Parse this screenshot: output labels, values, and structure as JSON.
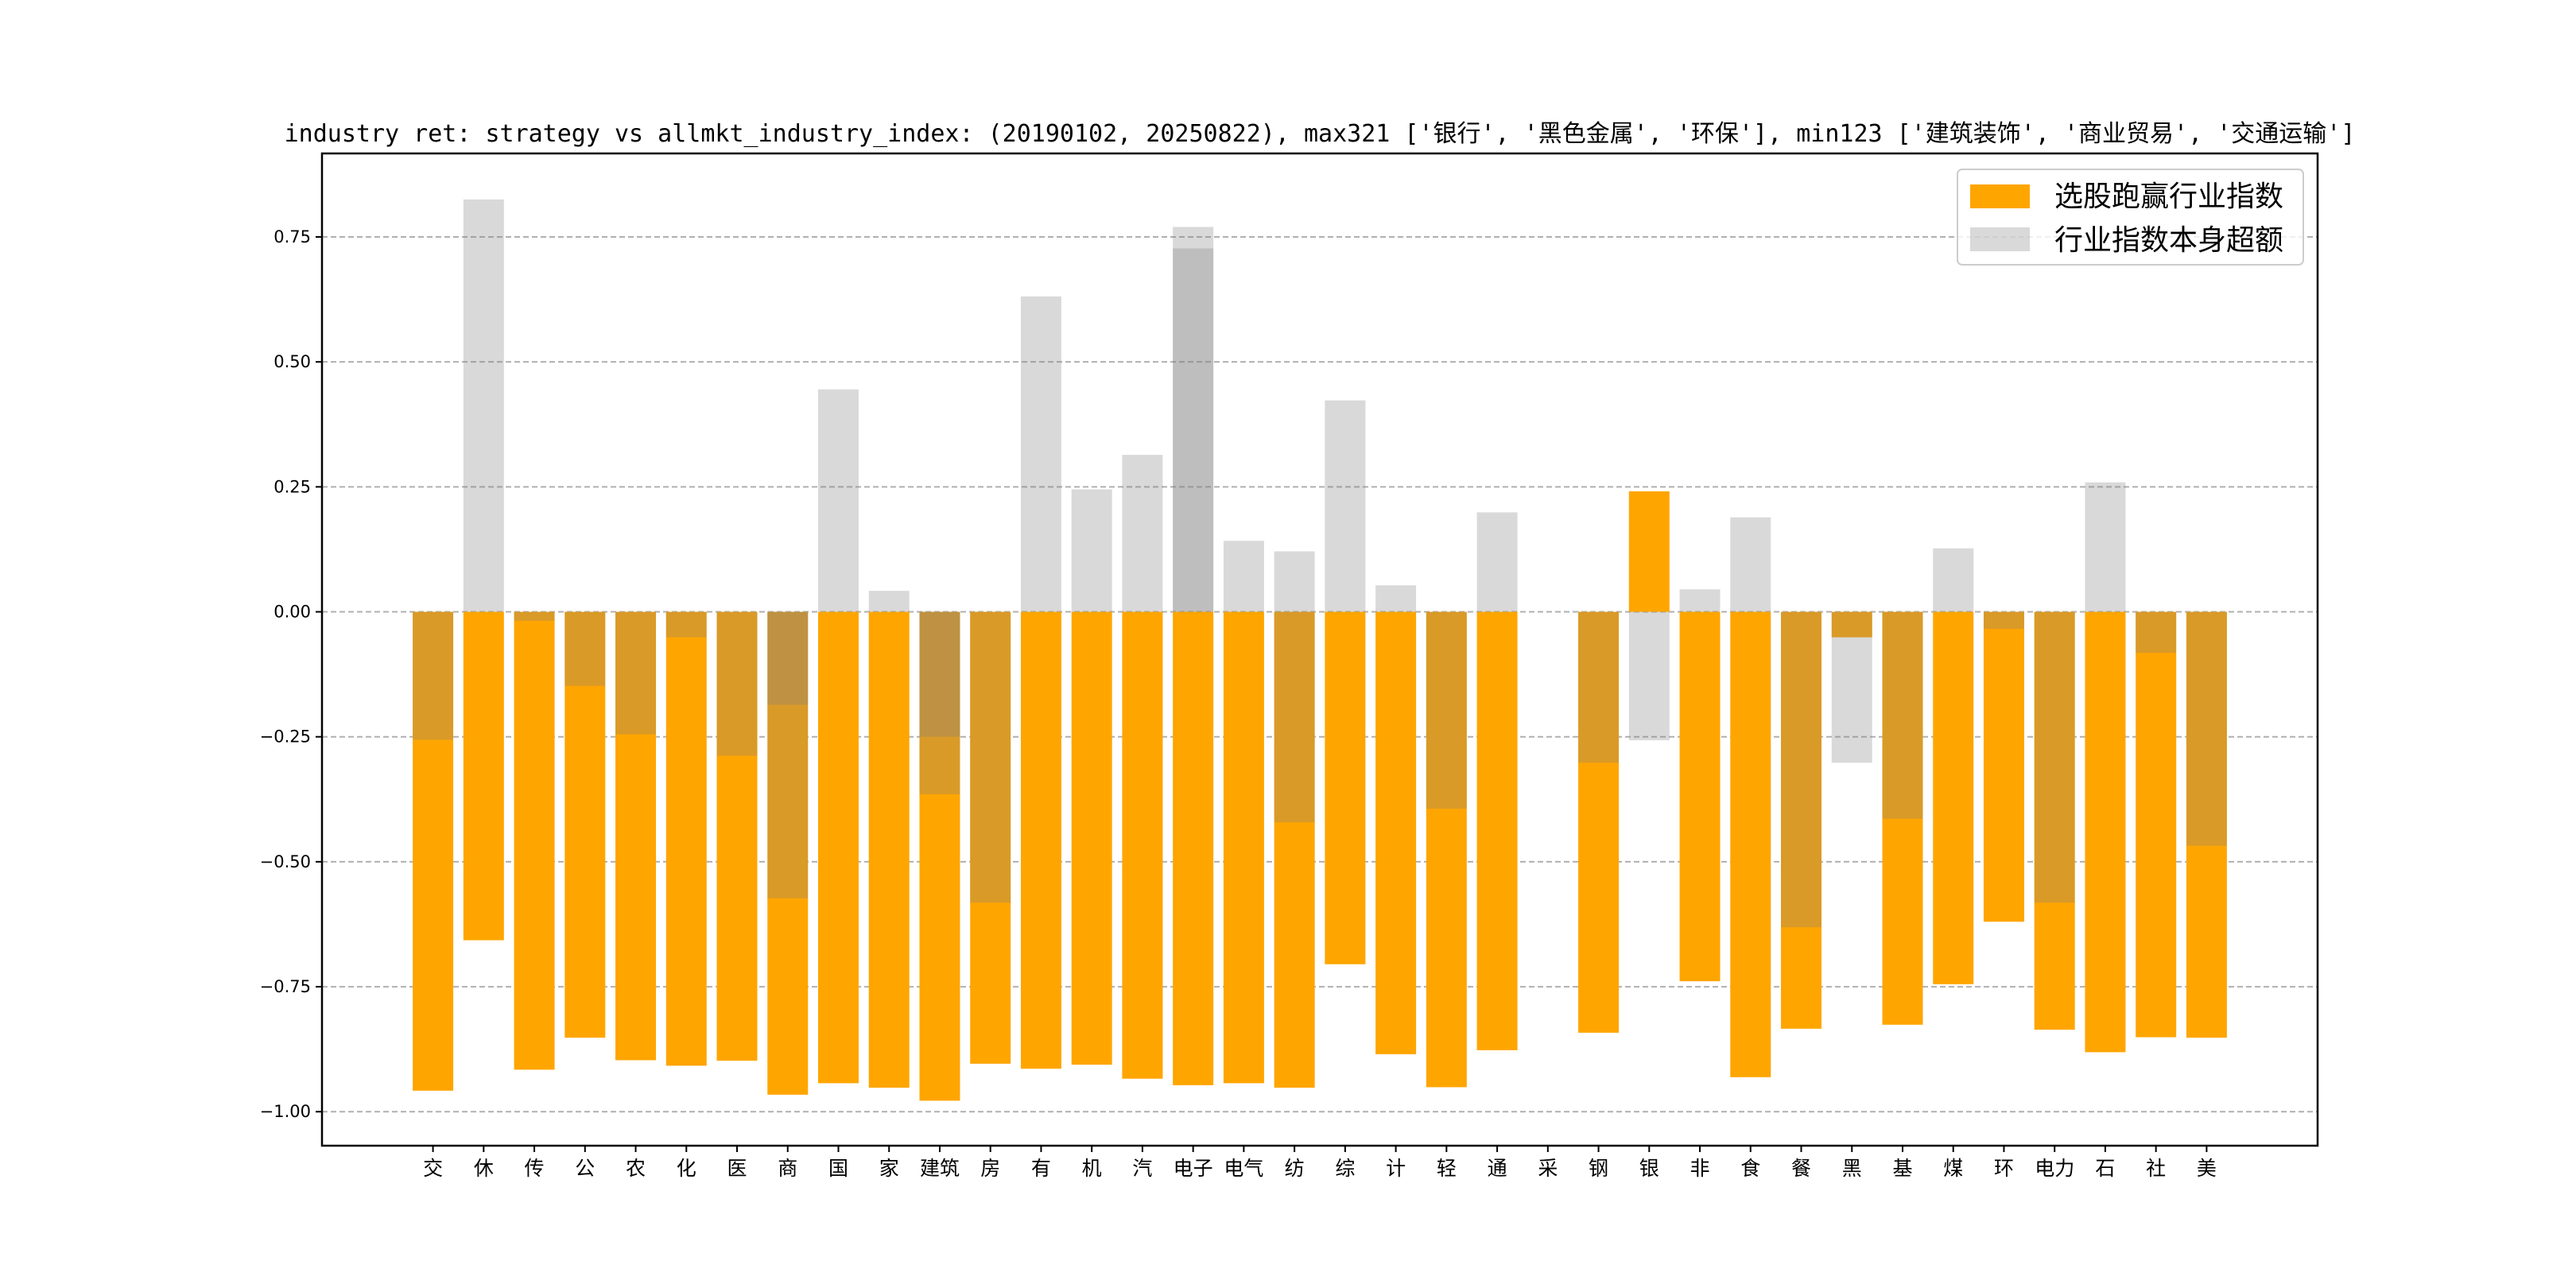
{
  "chart_data": {
    "type": "bar",
    "title": "industry ret: strategy vs allmkt_industry_index: (20190102, 20250822), max321 ['银行', '黑色金属', '环保'], min123 ['建筑装饰', '商业贸易', '交通运输']",
    "xlabel": "",
    "ylabel": "",
    "ylim": [
      -1.068,
      0.917
    ],
    "yticks": [
      -1.0,
      -0.75,
      -0.5,
      -0.25,
      0.0,
      0.25,
      0.5,
      0.75
    ],
    "ytick_labels": [
      "−1.00",
      "−0.75",
      "−0.50",
      "−0.25",
      "0.00",
      "0.25",
      "0.50",
      "0.75"
    ],
    "grid": "y dashed",
    "legend_position": "top-right",
    "colors": {
      "strategy": "#FFA500",
      "industry": "#808080",
      "industry_alpha": 0.3,
      "grid": "#b0b0b0"
    },
    "series_names": [
      "选股跑赢行业指数",
      "行业指数本身超额"
    ],
    "categories": [
      "交",
      "休",
      "传",
      "公",
      "农",
      "化",
      "医",
      "商",
      "国",
      "家",
      "建筑",
      "房",
      "有",
      "机",
      "汽",
      "电子",
      "电气",
      "纺",
      "综",
      "计",
      "轻",
      "通",
      "采",
      "钢",
      "银",
      "非",
      "食",
      "餐",
      "黑",
      "基",
      "煤",
      "环",
      "电力",
      "石",
      "社",
      "美"
    ],
    "strategy": [
      -0.958,
      -0.657,
      -0.916,
      -0.852,
      -0.897,
      -0.908,
      -0.898,
      -0.966,
      -0.943,
      -0.952,
      -0.978,
      -0.904,
      -0.914,
      -0.906,
      -0.934,
      -0.947,
      -0.943,
      -0.952,
      -0.705,
      -0.885,
      -0.951,
      -0.877,
      0,
      -0.842,
      0.241,
      -0.739,
      -0.931,
      -0.834,
      -0.051,
      -0.826,
      -0.745,
      -0.62,
      -0.836,
      -0.881,
      -0.851,
      -0.852
    ],
    "industry": [
      [
        -0.256
      ],
      [
        0.825
      ],
      [
        -0.018
      ],
      [
        -0.148
      ],
      [
        -0.245
      ],
      [
        -0.051
      ],
      [
        -0.288
      ],
      [
        -0.186,
        -0.573
      ],
      [
        0.445
      ],
      [
        0.042
      ],
      [
        -0.25,
        -0.365
      ],
      [
        -0.582
      ],
      [
        0.631
      ],
      [
        0.245
      ],
      [
        0.314
      ],
      [
        0.77,
        0.727
      ],
      [
        0.142
      ],
      [
        0.121,
        -0.421
      ],
      [
        0.423
      ],
      [
        0.053
      ],
      [
        -0.394
      ],
      [
        0.199
      ],
      [],
      [
        -0.302
      ],
      [
        -0.257
      ],
      [
        0.045
      ],
      [
        0.189
      ],
      [
        -0.631
      ],
      [
        -0.302
      ],
      [
        -0.414
      ],
      [
        0.127
      ],
      [
        -0.034
      ],
      [
        -0.582
      ],
      [
        0.259
      ],
      [
        -0.082
      ],
      [
        -0.468
      ]
    ]
  }
}
